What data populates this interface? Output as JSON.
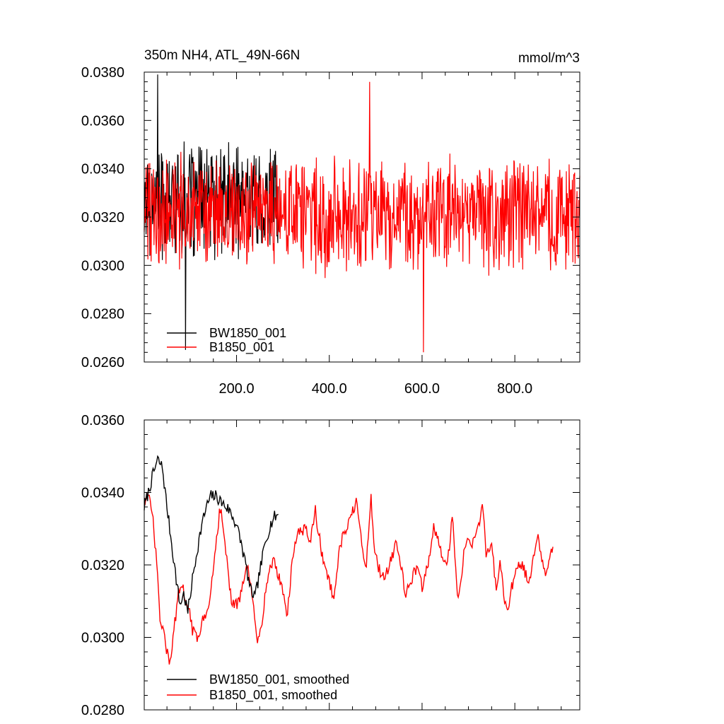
{
  "chart_data": [
    {
      "type": "line",
      "title": "350m NH4, ATL_49N-66N",
      "units": "mmol/m^3",
      "xlim": [
        1,
        940
      ],
      "ylim": [
        0.026,
        0.038
      ],
      "yticks": [
        "0.0260",
        "0.0280",
        "0.0300",
        "0.0320",
        "0.0340",
        "0.0360",
        "0.0380"
      ],
      "xticks": [
        "200.0",
        "400.0",
        "600.0",
        "800.0"
      ],
      "legend": {
        "placement": "bottom-left"
      },
      "series": [
        {
          "name": "BW1850_001",
          "color": "#000000",
          "x_range": [
            1,
            290
          ],
          "mean": 0.0327,
          "amplitude": 0.0022,
          "seed": 17,
          "max_point": [
            30,
            0.0379
          ],
          "min_point": [
            90,
            0.0265
          ]
        },
        {
          "name": "B1850_001",
          "color": "#ff0000",
          "x_range": [
            1,
            940
          ],
          "mean": 0.0321,
          "amplitude": 0.0022,
          "seed": 42,
          "max_point": [
            487,
            0.0376
          ],
          "min_point": [
            603,
            0.0264
          ]
        }
      ]
    },
    {
      "type": "line",
      "xlim": [
        1,
        940
      ],
      "ylim": [
        0.028,
        0.036
      ],
      "yticks": [
        "0.0280",
        "0.0300",
        "0.0320",
        "0.0340",
        "0.0360"
      ],
      "legend": {
        "placement": "bottom-left"
      },
      "series": [
        {
          "name": "BW1850_001, smoothed",
          "color": "#000000",
          "knots": [
            [
              1,
              0.0336
            ],
            [
              10,
              0.034
            ],
            [
              20,
              0.0345
            ],
            [
              30,
              0.0349
            ],
            [
              40,
              0.0347
            ],
            [
              50,
              0.0336
            ],
            [
              60,
              0.0326
            ],
            [
              70,
              0.0316
            ],
            [
              78,
              0.0309
            ],
            [
              86,
              0.0312
            ],
            [
              95,
              0.0307
            ],
            [
              105,
              0.0316
            ],
            [
              115,
              0.0324
            ],
            [
              125,
              0.0331
            ],
            [
              135,
              0.0336
            ],
            [
              145,
              0.0339
            ],
            [
              155,
              0.0339
            ],
            [
              170,
              0.0337
            ],
            [
              185,
              0.0335
            ],
            [
              200,
              0.0331
            ],
            [
              210,
              0.0326
            ],
            [
              220,
              0.032
            ],
            [
              230,
              0.0313
            ],
            [
              240,
              0.0311
            ],
            [
              250,
              0.0318
            ],
            [
              260,
              0.0325
            ],
            [
              270,
              0.033
            ],
            [
              280,
              0.0333
            ],
            [
              290,
              0.0334
            ]
          ]
        },
        {
          "name": "B1850_001, smoothed",
          "color": "#ff0000",
          "knots": [
            [
              1,
              0.0338
            ],
            [
              10,
              0.0339
            ],
            [
              20,
              0.0332
            ],
            [
              28,
              0.032
            ],
            [
              35,
              0.0305
            ],
            [
              45,
              0.03
            ],
            [
              55,
              0.0292
            ],
            [
              65,
              0.0302
            ],
            [
              75,
              0.0312
            ],
            [
              85,
              0.0313
            ],
            [
              95,
              0.0309
            ],
            [
              105,
              0.0302
            ],
            [
              115,
              0.03
            ],
            [
              125,
              0.0304
            ],
            [
              135,
              0.0306
            ],
            [
              145,
              0.0313
            ],
            [
              155,
              0.0326
            ],
            [
              165,
              0.0336
            ],
            [
              175,
              0.0327
            ],
            [
              185,
              0.0313
            ],
            [
              195,
              0.0308
            ],
            [
              205,
              0.031
            ],
            [
              215,
              0.0315
            ],
            [
              225,
              0.032
            ],
            [
              235,
              0.0309
            ],
            [
              245,
              0.0299
            ],
            [
              255,
              0.0305
            ],
            [
              265,
              0.0315
            ],
            [
              280,
              0.0322
            ],
            [
              290,
              0.0317
            ],
            [
              300,
              0.0313
            ],
            [
              310,
              0.0306
            ],
            [
              320,
              0.0322
            ],
            [
              330,
              0.0328
            ],
            [
              345,
              0.033
            ],
            [
              360,
              0.0327
            ],
            [
              370,
              0.0335
            ],
            [
              385,
              0.0322
            ],
            [
              400,
              0.0316
            ],
            [
              410,
              0.0309
            ],
            [
              420,
              0.0323
            ],
            [
              430,
              0.0328
            ],
            [
              445,
              0.0332
            ],
            [
              458,
              0.0338
            ],
            [
              470,
              0.0325
            ],
            [
              480,
              0.032
            ],
            [
              490,
              0.0339
            ],
            [
              498,
              0.0323
            ],
            [
              510,
              0.0318
            ],
            [
              520,
              0.0317
            ],
            [
              530,
              0.032
            ],
            [
              545,
              0.0327
            ],
            [
              555,
              0.0319
            ],
            [
              565,
              0.0312
            ],
            [
              575,
              0.0315
            ],
            [
              590,
              0.032
            ],
            [
              600,
              0.0314
            ],
            [
              615,
              0.0322
            ],
            [
              625,
              0.033
            ],
            [
              640,
              0.0324
            ],
            [
              655,
              0.032
            ],
            [
              665,
              0.0334
            ],
            [
              678,
              0.031
            ],
            [
              690,
              0.0323
            ],
            [
              700,
              0.0327
            ],
            [
              710,
              0.0326
            ],
            [
              720,
              0.0329
            ],
            [
              730,
              0.0338
            ],
            [
              738,
              0.0323
            ],
            [
              750,
              0.0325
            ],
            [
              760,
              0.0313
            ],
            [
              768,
              0.0322
            ],
            [
              778,
              0.0308
            ],
            [
              786,
              0.0309
            ],
            [
              795,
              0.0315
            ],
            [
              810,
              0.032
            ],
            [
              820,
              0.0319
            ],
            [
              830,
              0.0314
            ],
            [
              840,
              0.0321
            ],
            [
              850,
              0.0328
            ],
            [
              858,
              0.0322
            ],
            [
              866,
              0.0316
            ],
            [
              875,
              0.0322
            ],
            [
              882,
              0.0325
            ]
          ]
        }
      ]
    }
  ]
}
